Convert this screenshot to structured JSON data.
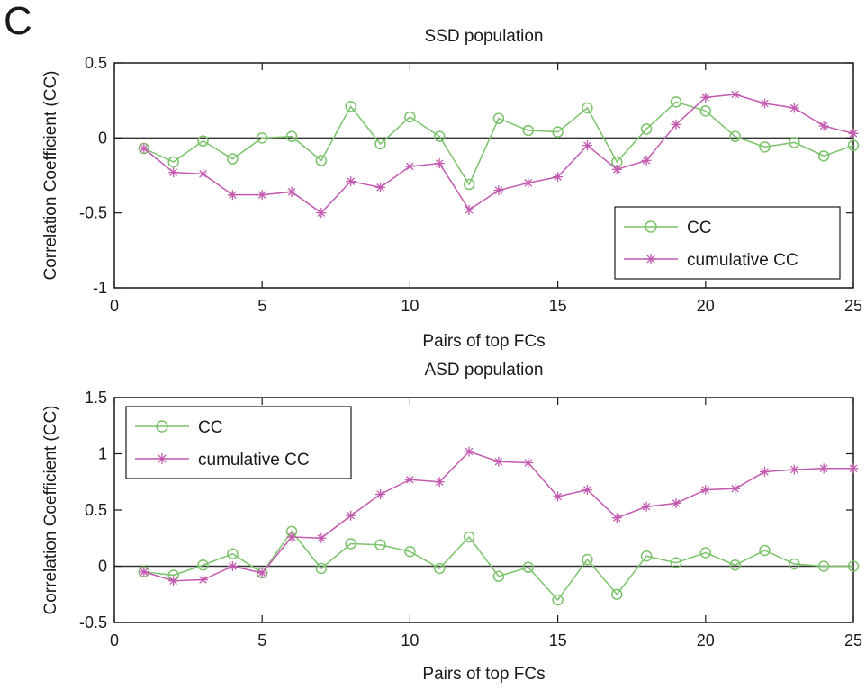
{
  "panel_label": "C",
  "colors": {
    "cc": "#7ac36a",
    "cumulative": "#c25ab0",
    "axis": "#1a1a1a",
    "zero_line": "#333333"
  },
  "chart_data": [
    {
      "type": "line",
      "title": "SSD population",
      "xlabel": "Pairs of top FCs",
      "ylabel": "Correlation Coefficient (CC)",
      "xlim": [
        0,
        25
      ],
      "ylim": [
        -1,
        0.5
      ],
      "xticks": [
        0,
        5,
        10,
        15,
        20,
        25
      ],
      "yticks": [
        -1,
        -0.5,
        0,
        0.5
      ],
      "xtick_labels": [
        "0",
        "5",
        "10",
        "15",
        "20",
        "25"
      ],
      "ytick_labels": [
        "-1",
        "-0.5",
        "0",
        "0.5"
      ],
      "legend_position": "bottom-right",
      "grid": false,
      "x": [
        1,
        2,
        3,
        4,
        5,
        6,
        7,
        8,
        9,
        10,
        11,
        12,
        13,
        14,
        15,
        16,
        17,
        18,
        19,
        20,
        21,
        22,
        23,
        24,
        25
      ],
      "series": [
        {
          "name": "CC",
          "marker": "circle",
          "values": [
            -0.07,
            -0.16,
            -0.02,
            -0.14,
            0.0,
            0.01,
            -0.15,
            0.21,
            -0.04,
            0.14,
            0.01,
            -0.31,
            0.13,
            0.05,
            0.04,
            0.2,
            -0.16,
            0.06,
            0.24,
            0.18,
            0.01,
            -0.06,
            -0.03,
            -0.12,
            -0.05
          ]
        },
        {
          "name": "cumulative CC",
          "marker": "asterisk",
          "values": [
            -0.07,
            -0.23,
            -0.24,
            -0.38,
            -0.38,
            -0.36,
            -0.5,
            -0.29,
            -0.33,
            -0.19,
            -0.17,
            -0.48,
            -0.35,
            -0.3,
            -0.26,
            -0.05,
            -0.21,
            -0.15,
            0.09,
            0.27,
            0.29,
            0.23,
            0.2,
            0.08,
            0.03
          ]
        }
      ]
    },
    {
      "type": "line",
      "title": "ASD population",
      "xlabel": "Pairs of top FCs",
      "ylabel": "Correlation Coefficient (CC)",
      "xlim": [
        0,
        25
      ],
      "ylim": [
        -0.5,
        1.5
      ],
      "xticks": [
        0,
        5,
        10,
        15,
        20,
        25
      ],
      "yticks": [
        -0.5,
        0,
        0.5,
        1,
        1.5
      ],
      "xtick_labels": [
        "0",
        "5",
        "10",
        "15",
        "20",
        "25"
      ],
      "ytick_labels": [
        "-0.5",
        "0",
        "0.5",
        "1",
        "1.5"
      ],
      "legend_position": "top-left",
      "grid": false,
      "x": [
        1,
        2,
        3,
        4,
        5,
        6,
        7,
        8,
        9,
        10,
        11,
        12,
        13,
        14,
        15,
        16,
        17,
        18,
        19,
        20,
        21,
        22,
        23,
        24,
        25
      ],
      "series": [
        {
          "name": "CC",
          "marker": "circle",
          "values": [
            -0.05,
            -0.08,
            0.01,
            0.11,
            -0.06,
            0.31,
            -0.02,
            0.2,
            0.19,
            0.13,
            -0.02,
            0.26,
            -0.09,
            -0.01,
            -0.3,
            0.06,
            -0.25,
            0.09,
            0.03,
            0.12,
            0.01,
            0.14,
            0.02,
            0.0,
            0.0
          ]
        },
        {
          "name": "cumulative CC",
          "marker": "asterisk",
          "values": [
            -0.05,
            -0.13,
            -0.12,
            0.0,
            -0.06,
            0.26,
            0.25,
            0.45,
            0.64,
            0.77,
            0.75,
            1.02,
            0.93,
            0.92,
            0.62,
            0.68,
            0.43,
            0.53,
            0.56,
            0.68,
            0.69,
            0.84,
            0.86,
            0.87,
            0.87
          ]
        }
      ]
    }
  ]
}
